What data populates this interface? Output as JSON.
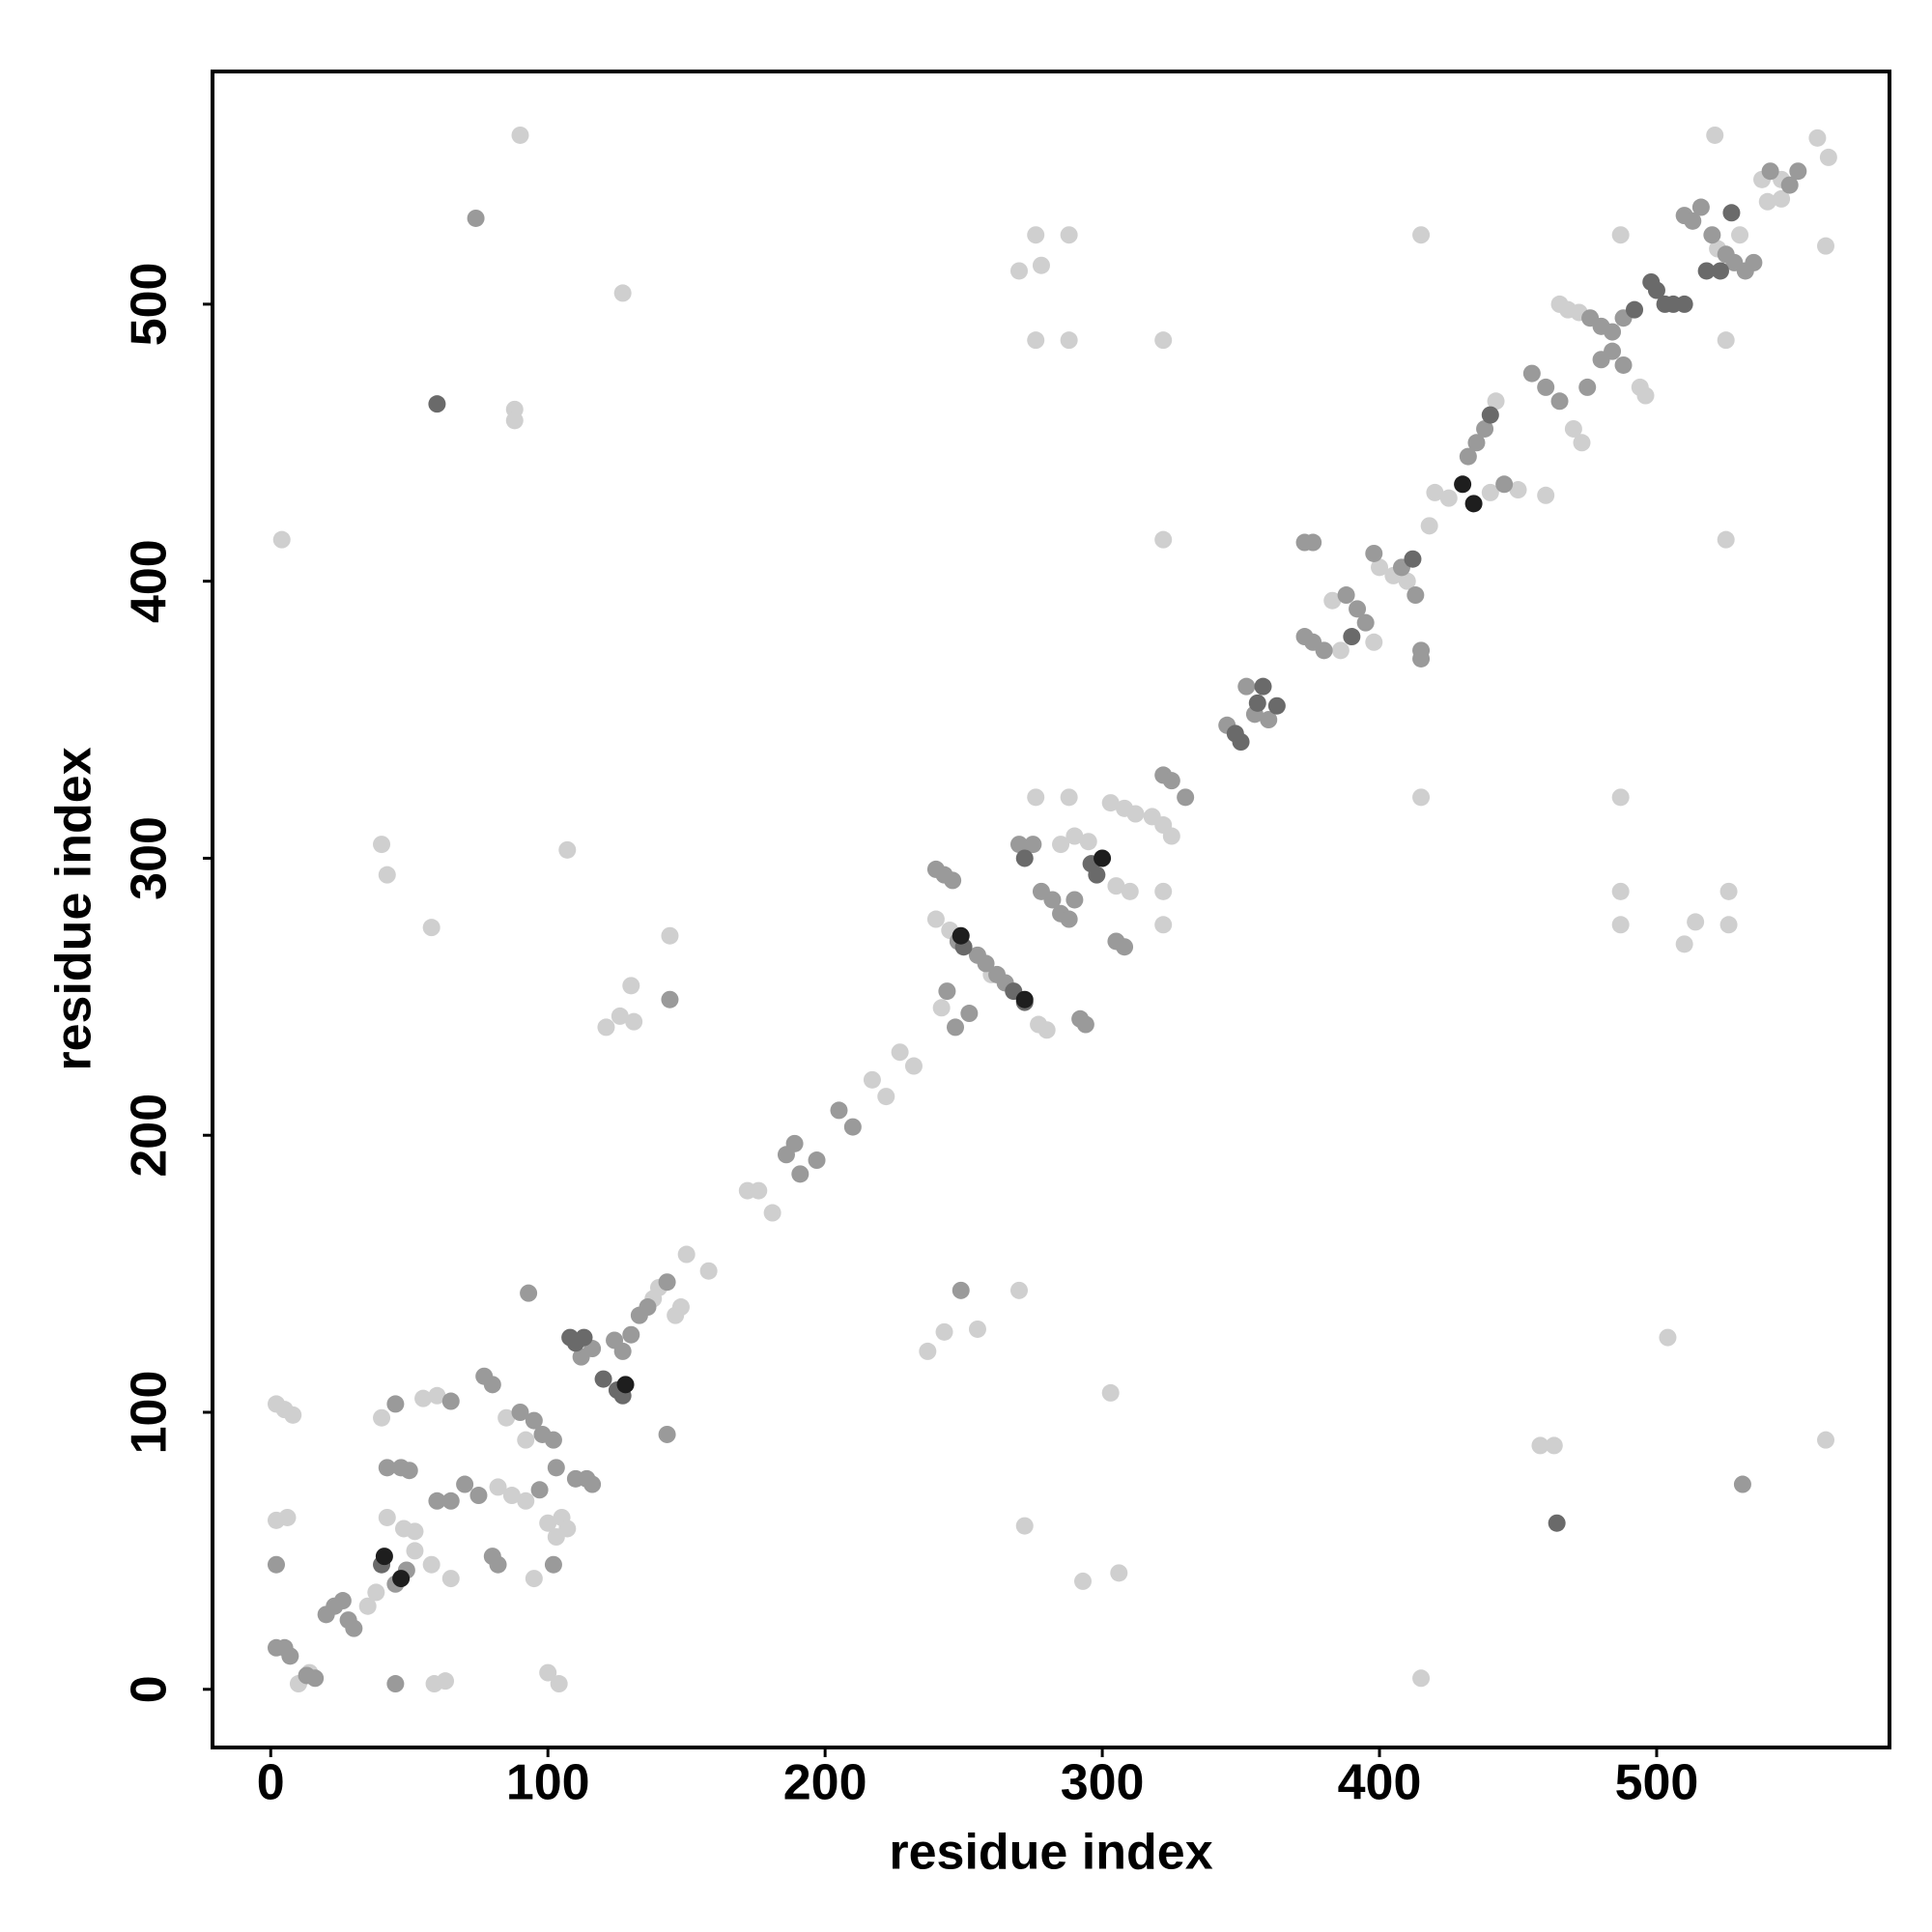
{
  "chart_data": {
    "type": "scatter",
    "xlabel": "residue index",
    "ylabel": "residue index",
    "xlim": [
      -21,
      584
    ],
    "ylim": [
      -21,
      584
    ],
    "xticks": [
      0,
      100,
      200,
      300,
      400,
      500
    ],
    "yticks": [
      0,
      100,
      200,
      300,
      400,
      500
    ],
    "grid": false,
    "series": [
      {
        "color": "#cfcfcf",
        "x": [
          4,
          415,
          90,
          561,
          127,
          504,
          88,
          88,
          458,
          463,
          40,
          42,
          293,
          306,
          58,
          272,
          107,
          303,
          144,
          270,
          121,
          126,
          131,
          237,
          243,
          130,
          255,
          270,
          278,
          276,
          288,
          276,
          288,
          322,
          415,
          487,
          525,
          525,
          322,
          415,
          276,
          288,
          487,
          487,
          487,
          526,
          526,
          322,
          322,
          521,
          561,
          510,
          514,
          2,
          5,
          8,
          2,
          6,
          59,
          63,
          100,
          104,
          10,
          14,
          35,
          38,
          42,
          48,
          52,
          40,
          55,
          60,
          58,
          52,
          65,
          85,
          92,
          82,
          87,
          92,
          100,
          103,
          105,
          107,
          95,
          138,
          140,
          146,
          148,
          150,
          158,
          172,
          176,
          181,
          217,
          222,
          227,
          232,
          240,
          245,
          260,
          242,
          285,
          290,
          295,
          303,
          308,
          312,
          318,
          322,
          325,
          305,
          310,
          277,
          280,
          386,
          398,
          383,
          400,
          405,
          410,
          418,
          420,
          425,
          440,
          450,
          460,
          442,
          470,
          473,
          465,
          468,
          472,
          494,
          496,
          530,
          522,
          538,
          545,
          558,
          562,
          540,
          545
        ],
        "values": [
          415,
          4,
          561,
          90,
          504,
          127,
          462,
          458,
          88,
          88,
          305,
          294,
          39,
          42,
          275,
          59,
          303,
          107,
          272,
          144,
          239,
          243,
          241,
          122,
          129,
          254,
          130,
          512,
          514,
          525,
          525,
          487,
          487,
          487,
          525,
          525,
          487,
          415,
          415,
          322,
          322,
          322,
          322,
          288,
          276,
          288,
          276,
          288,
          276,
          561,
          521,
          269,
          277,
          103,
          101,
          99,
          61,
          62,
          2,
          3,
          6,
          2,
          2,
          6,
          30,
          35,
          62,
          58,
          57,
          98,
          105,
          106,
          45,
          50,
          40,
          98,
          90,
          73,
          70,
          68,
          60,
          55,
          62,
          58,
          40,
          141,
          145,
          135,
          138,
          157,
          151,
          180,
          180,
          172,
          220,
          214,
          230,
          225,
          278,
          274,
          258,
          246,
          305,
          308,
          306,
          320,
          318,
          316,
          315,
          312,
          308,
          290,
          288,
          240,
          238,
          375,
          378,
          393,
          405,
          402,
          400,
          420,
          432,
          430,
          432,
          433,
          431,
          465,
          455,
          450,
          500,
          498,
          497,
          470,
          467,
          525,
          520,
          545,
          545,
          560,
          553,
          537,
          538
        ]
      },
      {
        "color": "#9a9a9a",
        "x": [
          531,
          74,
          45,
          2,
          249,
          144,
          93,
          143,
          2,
          5,
          7,
          13,
          16,
          20,
          23,
          26,
          28,
          30,
          45,
          49,
          42,
          47,
          50,
          45,
          65,
          60,
          65,
          70,
          75,
          80,
          82,
          77,
          80,
          90,
          95,
          98,
          102,
          97,
          102,
          103,
          110,
          114,
          116,
          112,
          116,
          124,
          127,
          130,
          133,
          136,
          143,
          186,
          189,
          191,
          197,
          205,
          210,
          240,
          243,
          246,
          248,
          252,
          244,
          255,
          258,
          262,
          265,
          247,
          270,
          275,
          278,
          282,
          285,
          288,
          290,
          305,
          308,
          292,
          294,
          322,
          325,
          330,
          345,
          352,
          360,
          355,
          373,
          376,
          380,
          388,
          392,
          395,
          373,
          376,
          398,
          408,
          413,
          415,
          415,
          432,
          435,
          438,
          445,
          455,
          460,
          465,
          476,
          480,
          484,
          488,
          475,
          480,
          484,
          488,
          510,
          513,
          516,
          520,
          525,
          528,
          532,
          535,
          541,
          548,
          551
        ],
        "values": [
          74,
          531,
          2,
          45,
          144,
          249,
          143,
          92,
          15,
          15,
          12,
          5,
          4,
          27,
          30,
          32,
          25,
          22,
          38,
          43,
          80,
          80,
          79,
          103,
          104,
          68,
          68,
          74,
          70,
          48,
          45,
          113,
          110,
          100,
          97,
          92,
          90,
          72,
          45,
          80,
          76,
          76,
          74,
          120,
          123,
          126,
          122,
          128,
          135,
          138,
          147,
          193,
          197,
          186,
          191,
          209,
          203,
          296,
          294,
          292,
          270,
          244,
          252,
          265,
          262,
          258,
          255,
          239,
          305,
          305,
          288,
          285,
          280,
          278,
          285,
          270,
          268,
          242,
          240,
          330,
          328,
          322,
          348,
          362,
          350,
          352,
          380,
          378,
          375,
          395,
          390,
          385,
          414,
          414,
          410,
          405,
          395,
          375,
          372,
          445,
          450,
          455,
          435,
          475,
          470,
          465,
          495,
          492,
          490,
          495,
          470,
          480,
          483,
          478,
          532,
          530,
          535,
          525,
          518,
          515,
          512,
          515,
          548,
          543,
          548
        ]
      },
      {
        "color": "#6a6a6a",
        "x": [
          60,
          464,
          40,
          108,
          110,
          113,
          120,
          125,
          127,
          250,
          268,
          272,
          272,
          296,
          298,
          348,
          350,
          356,
          358,
          363,
          390,
          412,
          440,
          492,
          498,
          500,
          503,
          506,
          510,
          518,
          523,
          527
        ],
        "values": [
          464,
          60,
          45,
          127,
          125,
          127,
          112,
          108,
          106,
          268,
          252,
          248,
          300,
          298,
          294,
          345,
          342,
          356,
          362,
          355,
          380,
          408,
          460,
          498,
          508,
          505,
          500,
          500,
          500,
          512,
          512,
          533
        ]
      },
      {
        "color": "#1e1e1e",
        "x": [
          41,
          47,
          128,
          249,
          272,
          300,
          430,
          434
        ],
        "values": [
          48,
          40,
          110,
          272,
          249,
          300,
          435,
          428
        ]
      }
    ]
  }
}
